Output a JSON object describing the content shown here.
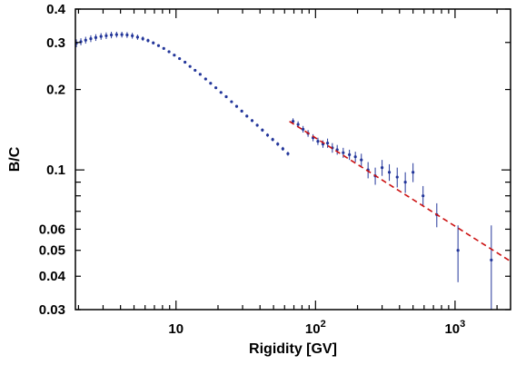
{
  "chart_data": {
    "type": "scatter",
    "title": "",
    "xlabel": "Rigidity [GV]",
    "ylabel": "B/C",
    "xscale": "log",
    "yscale": "log",
    "xlim": [
      1.9,
      2500
    ],
    "ylim": [
      0.03,
      0.4
    ],
    "grid": false,
    "legend": "none",
    "colors": {
      "points": "#23369a",
      "fit": "#cc1111",
      "axes": "#000000"
    },
    "x_tick_labels": [
      {
        "value": 10,
        "base": "10",
        "exp": ""
      },
      {
        "value": 100,
        "base": "10",
        "exp": "2"
      },
      {
        "value": 1000,
        "base": "10",
        "exp": "3"
      }
    ],
    "y_tick_labels": [
      {
        "value": 0.4,
        "label": "0.4"
      },
      {
        "value": 0.3,
        "label": "0.3"
      },
      {
        "value": 0.2,
        "label": "0.2"
      },
      {
        "value": 0.1,
        "label": "0.1"
      },
      {
        "value": 0.06,
        "label": "0.06"
      },
      {
        "value": 0.05,
        "label": "0.05"
      },
      {
        "value": 0.04,
        "label": "0.04"
      },
      {
        "value": 0.03,
        "label": "0.03"
      }
    ],
    "series": [
      {
        "style": "points with error bars",
        "x": [
          1.93,
          2.08,
          2.25,
          2.45,
          2.66,
          2.9,
          3.16,
          3.44,
          3.75,
          4.09,
          4.46,
          4.86,
          5.3,
          5.78,
          6.3,
          6.87,
          7.49,
          8.17,
          8.91,
          9.72,
          10.6,
          11.6,
          12.6,
          13.7,
          14.9,
          16.3,
          17.7,
          19.3,
          21.0,
          22.9,
          25.0,
          27.2,
          29.6,
          32.2,
          35.1,
          38.2,
          41.6,
          45.3,
          49.3,
          53.6,
          58.3,
          63.4,
          69.0,
          75.0,
          81.4,
          88.4,
          96.0,
          104,
          113,
          122,
          132,
          143,
          158,
          175,
          193,
          213,
          238,
          268,
          300,
          338,
          385,
          440,
          500,
          590,
          740,
          1050,
          1820
        ],
        "y": [
          0.298,
          0.302,
          0.306,
          0.31,
          0.313,
          0.316,
          0.318,
          0.32,
          0.321,
          0.321,
          0.32,
          0.318,
          0.314,
          0.31,
          0.305,
          0.299,
          0.292,
          0.285,
          0.277,
          0.269,
          0.261,
          0.253,
          0.244,
          0.236,
          0.228,
          0.219,
          0.211,
          0.203,
          0.195,
          0.188,
          0.18,
          0.173,
          0.166,
          0.159,
          0.153,
          0.147,
          0.141,
          0.135,
          0.13,
          0.125,
          0.12,
          0.115,
          0.152,
          0.148,
          0.142,
          0.137,
          0.132,
          0.128,
          0.125,
          0.126,
          0.121,
          0.119,
          0.116,
          0.114,
          0.112,
          0.109,
          0.1,
          0.095,
          0.102,
          0.098,
          0.094,
          0.09,
          0.098,
          0.08,
          0.068,
          0.05,
          0.046
        ],
        "err": [
          0.01,
          0.009,
          0.009,
          0.009,
          0.009,
          0.009,
          0.009,
          0.009,
          0.008,
          0.008,
          0.008,
          0.008,
          0.007,
          0.006,
          0.005,
          0.004,
          0.003,
          0.002,
          0.002,
          0.002,
          0.002,
          0.002,
          0.002,
          0.002,
          0.002,
          0.002,
          0.002,
          0.002,
          0.002,
          0.002,
          0.002,
          0.002,
          0.002,
          0.002,
          0.002,
          0.002,
          0.002,
          0.002,
          0.002,
          0.002,
          0.002,
          0.002,
          0.004,
          0.004,
          0.004,
          0.004,
          0.004,
          0.004,
          0.004,
          0.005,
          0.005,
          0.005,
          0.005,
          0.005,
          0.005,
          0.006,
          0.007,
          0.007,
          0.007,
          0.007,
          0.008,
          0.008,
          0.008,
          0.007,
          0.007,
          0.012,
          0.016
        ]
      },
      {
        "style": "dashed line",
        "x": [
          65,
          2500
        ],
        "y": [
          0.152,
          0.0455
        ]
      }
    ]
  }
}
